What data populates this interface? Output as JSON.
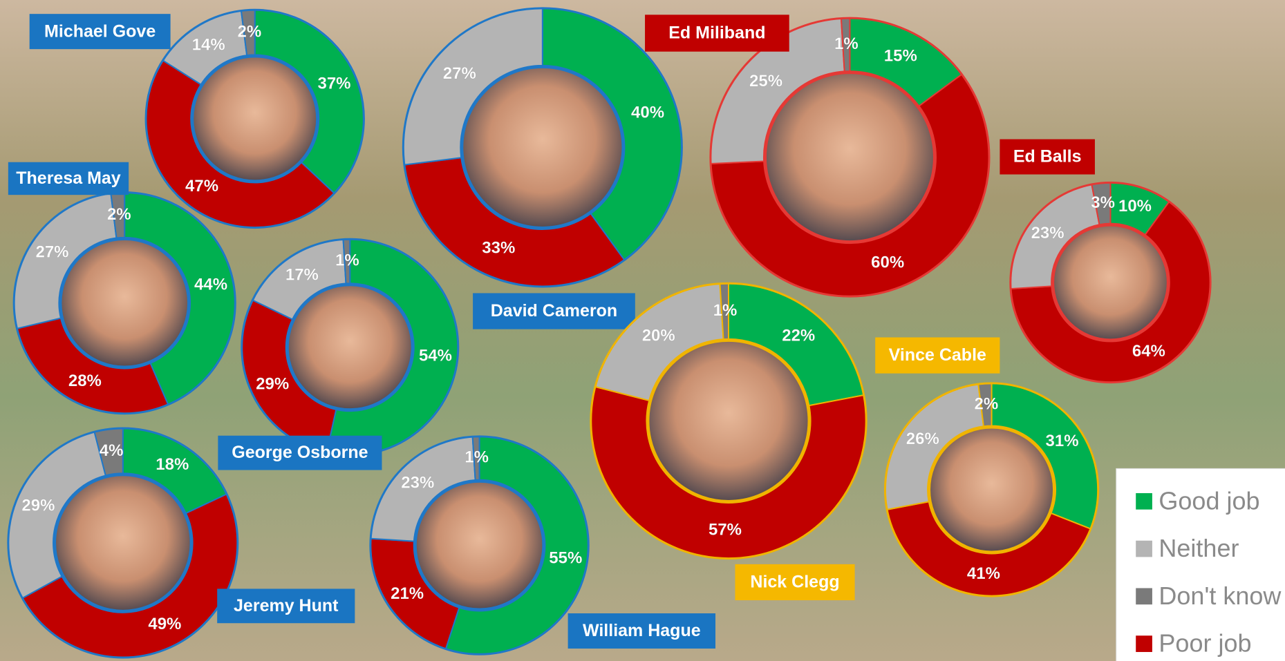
{
  "legend": {
    "categories": [
      "Good job",
      "Neither",
      "Don't know",
      "Poor job"
    ],
    "colors": [
      "#00b050",
      "#b4b4b4",
      "#7a7a7a",
      "#c00000"
    ],
    "position": "bottom-right"
  },
  "chart_data": [
    {
      "type": "donut",
      "title": "Michael Gove",
      "values": [
        37,
        14,
        2,
        47
      ],
      "value_labels": [
        "37%",
        "14%",
        "2%",
        "47%"
      ],
      "ring_color": "#1f78c8",
      "label_color": "#1a75c2"
    },
    {
      "type": "donut",
      "title": "David Cameron",
      "values": [
        40,
        27,
        null,
        33
      ],
      "value_labels": [
        "40%",
        "27%",
        null,
        "33%"
      ],
      "ring_color": "#1f78c8",
      "label_color": "#1a75c2"
    },
    {
      "type": "donut",
      "title": "Ed Miliband",
      "values": [
        15,
        25,
        1,
        60
      ],
      "value_labels": [
        "15%",
        "25%",
        "1%",
        "60%"
      ],
      "ring_color": "#e53935",
      "label_color": "#c00000"
    },
    {
      "type": "donut",
      "title": "Ed Balls",
      "values": [
        10,
        23,
        3,
        64
      ],
      "value_labels": [
        "10%",
        "23%",
        "3%",
        "64%"
      ],
      "ring_color": "#e53935",
      "label_color": "#c00000"
    },
    {
      "type": "donut",
      "title": "Theresa May",
      "values": [
        44,
        27,
        2,
        28
      ],
      "value_labels": [
        "44%",
        "27%",
        "2%",
        "28%"
      ],
      "ring_color": "#1f78c8",
      "label_color": "#1a75c2"
    },
    {
      "type": "donut",
      "title": "George Osborne",
      "values": [
        54,
        17,
        1,
        29
      ],
      "value_labels": [
        "54%",
        "17%",
        "1%",
        "29%"
      ],
      "ring_color": "#1f78c8",
      "label_color": "#1a75c2"
    },
    {
      "type": "donut",
      "title": "Nick Clegg",
      "values": [
        22,
        20,
        1,
        57
      ],
      "value_labels": [
        "22%",
        "20%",
        "1%",
        "57%"
      ],
      "ring_color": "#f0b400",
      "label_color": "#f5b800"
    },
    {
      "type": "donut",
      "title": "Vince Cable",
      "values": [
        31,
        26,
        2,
        41
      ],
      "value_labels": [
        "31%",
        "26%",
        "2%",
        "41%"
      ],
      "ring_color": "#f0b400",
      "label_color": "#f5b800"
    },
    {
      "type": "donut",
      "title": "Jeremy Hunt",
      "values": [
        18,
        29,
        4,
        49
      ],
      "value_labels": [
        "18%",
        "29%",
        "4%",
        "49%"
      ],
      "ring_color": "#1f78c8",
      "label_color": "#1a75c2"
    },
    {
      "type": "donut",
      "title": "William Hague",
      "values": [
        55,
        23,
        1,
        21
      ],
      "value_labels": [
        "55%",
        "23%",
        "1%",
        "21%"
      ],
      "ring_color": "#1f78c8",
      "label_color": "#1a75c2"
    }
  ]
}
